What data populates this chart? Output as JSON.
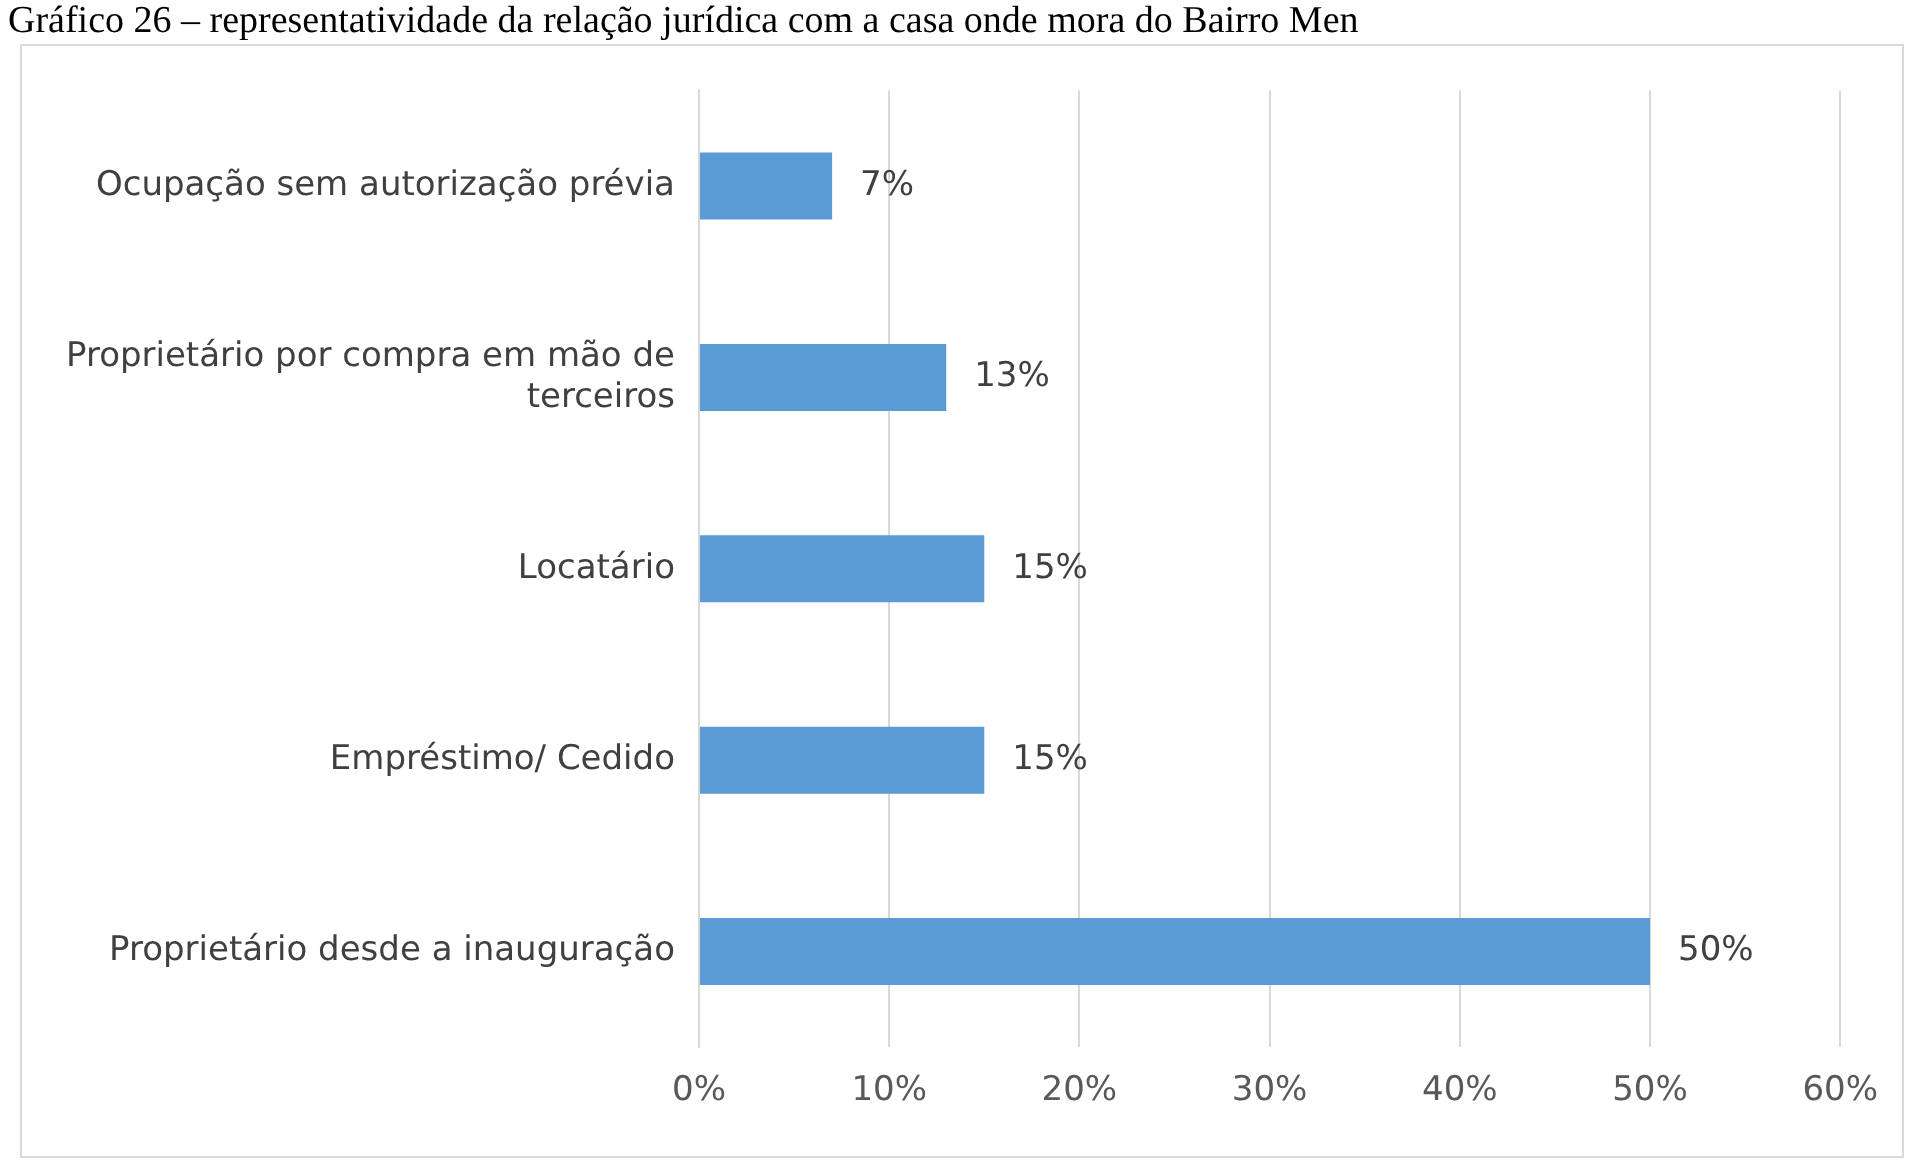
{
  "chart_data": {
    "type": "bar",
    "orientation": "horizontal",
    "title": "Gráfico 26 – representatividade da relação jurídica com a casa onde mora do Bairro Men",
    "categories": [
      "Ocupação sem autorização prévia",
      "Proprietário por compra em mão de terceiros",
      "Locatário",
      "Empréstimo/ Cedido",
      "Proprietário desde a inauguração"
    ],
    "values": [
      7,
      13,
      15,
      15,
      50
    ],
    "color": "#5b9bd5",
    "value_labels": [
      "7%",
      "13%",
      "15%",
      "15%",
      "50%"
    ],
    "xlim": [
      0,
      60
    ],
    "xticks": [
      {
        "value": 0,
        "label": "0%"
      },
      {
        "value": 10,
        "label": "10%"
      },
      {
        "value": 20,
        "label": "20%"
      },
      {
        "value": 30,
        "label": "30%"
      },
      {
        "value": 40,
        "label": "40%"
      },
      {
        "value": 50,
        "label": "50%"
      },
      {
        "value": 60,
        "label": "60%"
      }
    ],
    "grid": "x",
    "legend": false
  }
}
